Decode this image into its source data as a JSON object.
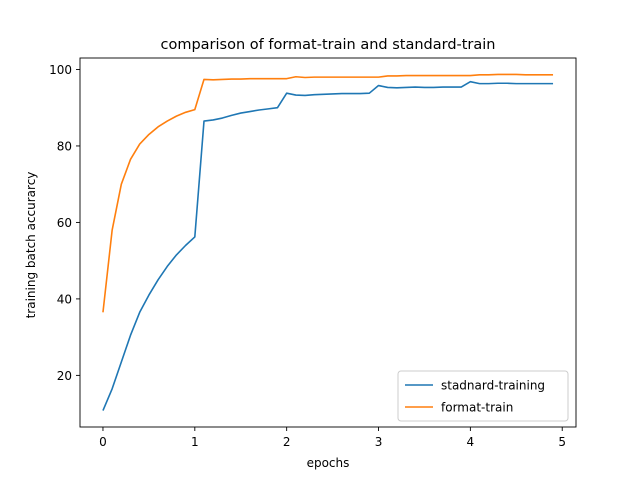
{
  "chart_data": {
    "type": "line",
    "title": "comparison of format-train and standard-train",
    "xlabel": "epochs",
    "ylabel": "training batch accurarcy",
    "xlim": [
      -0.25,
      5.15
    ],
    "ylim": [
      6.5,
      103
    ],
    "xticks": [
      0,
      1,
      2,
      3,
      4,
      5
    ],
    "yticks": [
      20,
      40,
      60,
      80,
      100
    ],
    "grid": false,
    "legend_position": "lower right",
    "series": [
      {
        "name": "stadnard-training",
        "color": "#1f77b4",
        "x": [
          0,
          0.1,
          0.2,
          0.3,
          0.4,
          0.5,
          0.6,
          0.7,
          0.8,
          0.9,
          1.0,
          1.1,
          1.2,
          1.3,
          1.4,
          1.5,
          1.6,
          1.7,
          1.8,
          1.9,
          2.0,
          2.1,
          2.2,
          2.3,
          2.4,
          2.5,
          2.6,
          2.7,
          2.8,
          2.9,
          3.0,
          3.1,
          3.2,
          3.3,
          3.4,
          3.5,
          3.6,
          3.7,
          3.8,
          3.9,
          4.0,
          4.1,
          4.2,
          4.3,
          4.4,
          4.5,
          4.6,
          4.7,
          4.8,
          4.9
        ],
        "y": [
          10.8,
          16.5,
          23.5,
          30.5,
          36.5,
          41.0,
          45.0,
          48.5,
          51.5,
          54.0,
          56.2,
          86.5,
          86.8,
          87.3,
          88.0,
          88.6,
          89.0,
          89.4,
          89.7,
          90.0,
          93.8,
          93.3,
          93.2,
          93.4,
          93.5,
          93.6,
          93.7,
          93.7,
          93.7,
          93.8,
          95.8,
          95.3,
          95.2,
          95.3,
          95.4,
          95.3,
          95.3,
          95.4,
          95.4,
          95.4,
          96.8,
          96.3,
          96.3,
          96.4,
          96.4,
          96.3,
          96.3,
          96.3,
          96.3,
          96.3
        ]
      },
      {
        "name": "format-train",
        "color": "#ff7f0e",
        "x": [
          0,
          0.1,
          0.2,
          0.3,
          0.4,
          0.5,
          0.6,
          0.7,
          0.8,
          0.9,
          1.0,
          1.1,
          1.2,
          1.3,
          1.4,
          1.5,
          1.6,
          1.7,
          1.8,
          1.9,
          2.0,
          2.1,
          2.2,
          2.3,
          2.4,
          2.5,
          2.6,
          2.7,
          2.8,
          2.9,
          3.0,
          3.1,
          3.2,
          3.3,
          3.4,
          3.5,
          3.6,
          3.7,
          3.8,
          3.9,
          4.0,
          4.1,
          4.2,
          4.3,
          4.4,
          4.5,
          4.6,
          4.7,
          4.8,
          4.9
        ],
        "y": [
          36.5,
          58.0,
          70.0,
          76.5,
          80.5,
          83.0,
          85.0,
          86.5,
          87.8,
          88.8,
          89.5,
          97.4,
          97.3,
          97.4,
          97.5,
          97.5,
          97.6,
          97.6,
          97.6,
          97.6,
          97.6,
          98.1,
          97.9,
          98.0,
          98.0,
          98.0,
          98.0,
          98.0,
          98.0,
          98.0,
          98.0,
          98.3,
          98.3,
          98.4,
          98.4,
          98.4,
          98.4,
          98.4,
          98.4,
          98.4,
          98.4,
          98.6,
          98.6,
          98.7,
          98.7,
          98.7,
          98.6,
          98.6,
          98.6,
          98.6
        ]
      }
    ]
  }
}
